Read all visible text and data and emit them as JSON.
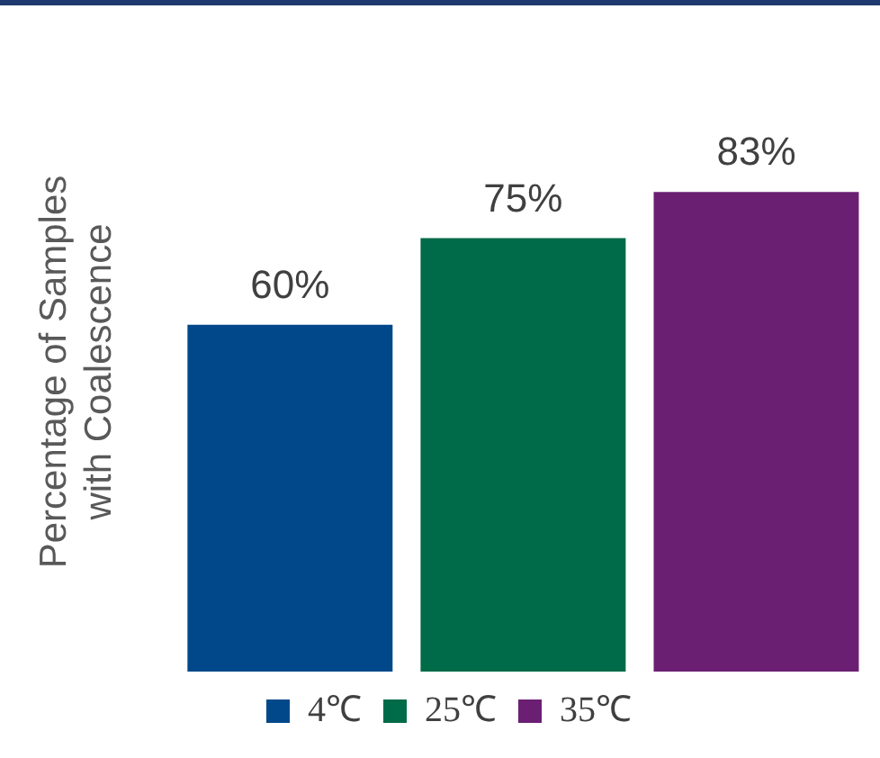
{
  "chart_data": {
    "type": "bar",
    "ylabel": "Percentage of Samples\nwith Coalescence",
    "categories": [
      null
    ],
    "series": [
      {
        "name": "4℃",
        "color": "#00488a",
        "values": [
          60
        ],
        "value_labels": [
          "60%"
        ]
      },
      {
        "name": "25℃",
        "color": "#006b48",
        "values": [
          75
        ],
        "value_labels": [
          "75%"
        ]
      },
      {
        "name": "35℃",
        "color": "#6b1f73",
        "values": [
          83
        ],
        "value_labels": [
          "83%"
        ]
      }
    ],
    "legend": "bottom",
    "grid": false
  }
}
